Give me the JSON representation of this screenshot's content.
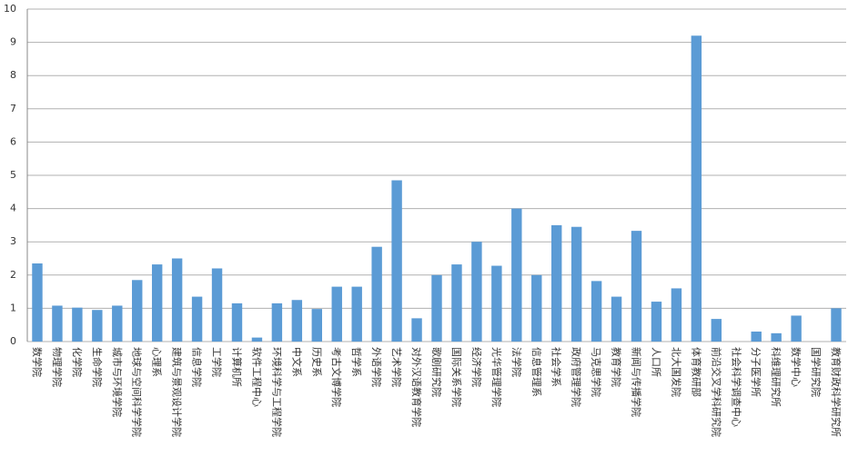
{
  "chart_data": {
    "type": "bar",
    "color": "#5b9bd5",
    "grid": true,
    "categories": [
      "数学院",
      "物理学院",
      "化学院",
      "生命学院",
      "城市与环境学院",
      "地球与空间科学学院",
      "心理系",
      "建筑与景观设计学院",
      "信息学院",
      "工学院",
      "计算机所",
      "软件工程中心",
      "环境科学与工程学院",
      "中文系",
      "历史系",
      "考古文博学院",
      "哲学系",
      "外语学院",
      "艺术学院",
      "对外汉语教育学院",
      "歌剧研究院",
      "国际关系学院",
      "经济学院",
      "光华管理学院",
      "法学院",
      "信息管理系",
      "社会学系",
      "政府管理学院",
      "马克思学院",
      "教育学院",
      "新闻与传播学院",
      "人口所",
      "北大国发院",
      "体育教研部",
      "前沿交叉学科研究院",
      "社会科学调查中心",
      "分子医学所",
      "科维理研究所",
      "数学中心",
      "国学研究院",
      "教育财政科学研究所"
    ],
    "values": [
      2.35,
      1.08,
      1.02,
      0.95,
      1.08,
      1.85,
      2.32,
      2.5,
      1.35,
      2.2,
      1.15,
      0.12,
      1.15,
      1.25,
      0.98,
      1.65,
      1.65,
      2.85,
      4.85,
      0.7,
      2.0,
      2.32,
      3.0,
      2.28,
      4.0,
      2.0,
      3.5,
      3.45,
      1.82,
      1.35,
      3.33,
      1.2,
      1.6,
      9.2,
      0.68,
      0,
      0.3,
      0.25,
      0.78,
      0,
      1.0
    ],
    "ylim": [
      0,
      10
    ],
    "yticks": [
      0,
      1,
      2,
      3,
      4,
      5,
      6,
      7,
      8,
      9,
      10
    ]
  }
}
